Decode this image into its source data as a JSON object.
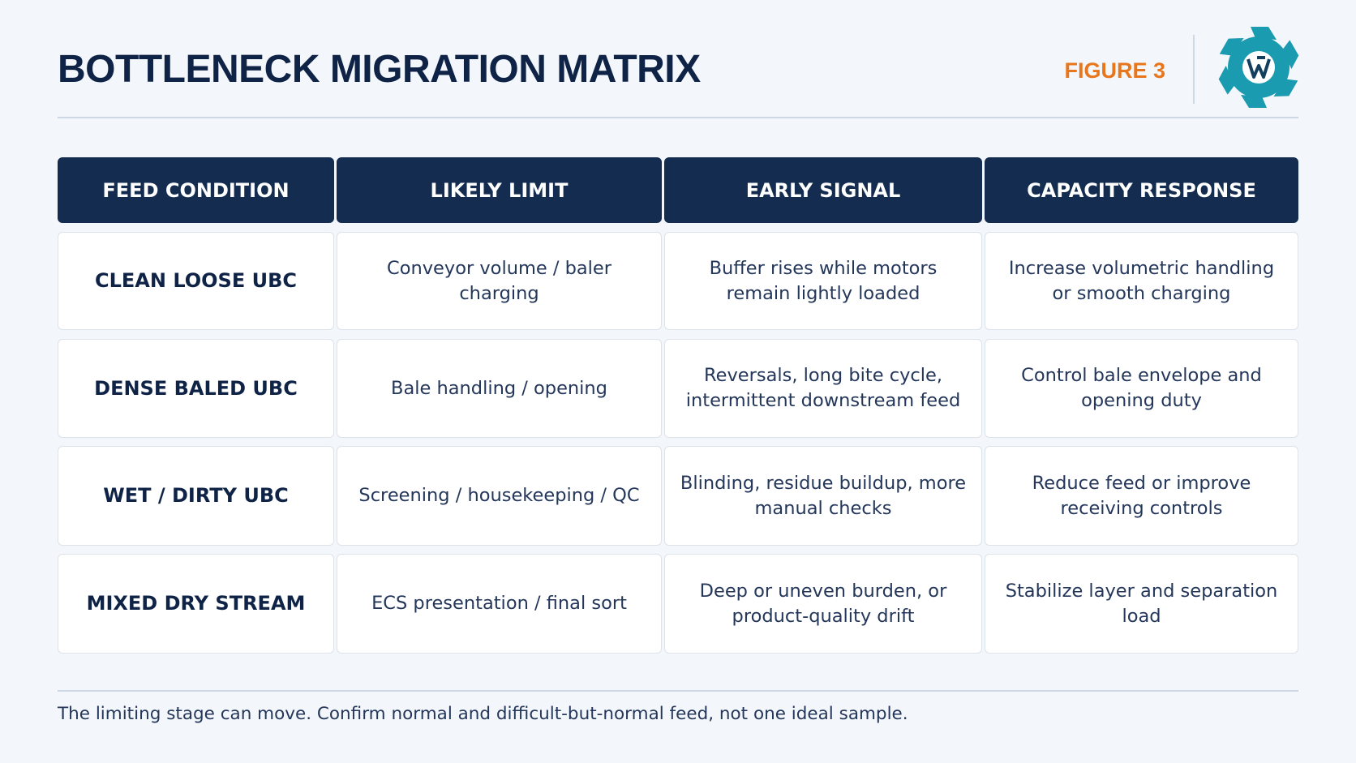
{
  "header": {
    "title": "BOTTLENECK MIGRATION MATRIX",
    "figure_label": "FIGURE 3"
  },
  "table": {
    "columns": [
      "FEED CONDITION",
      "LIKELY LIMIT",
      "EARLY SIGNAL",
      "CAPACITY RESPONSE"
    ],
    "rows": [
      [
        "CLEAN LOOSE UBC",
        "Conveyor volume / baler charging",
        "Buffer rises while motors remain lightly loaded",
        "Increase volumetric handling or smooth charging"
      ],
      [
        "DENSE BALED UBC",
        "Bale handling / opening",
        "Reversals, long bite cycle, intermittent downstream feed",
        "Control bale envelope and opening duty"
      ],
      [
        "WET / DIRTY UBC",
        "Screening / housekeeping / QC",
        "Blinding, residue buildup, more manual checks",
        "Reduce feed or improve receiving controls"
      ],
      [
        "MIXED DRY STREAM",
        "ECS presentation / final sort",
        "Deep or uneven burden, or product-quality drift",
        "Stabilize layer and separation load"
      ]
    ]
  },
  "footer": {
    "note": "The limiting stage can move. Confirm normal and difficult-but-normal feed, not one ideal sample."
  }
}
